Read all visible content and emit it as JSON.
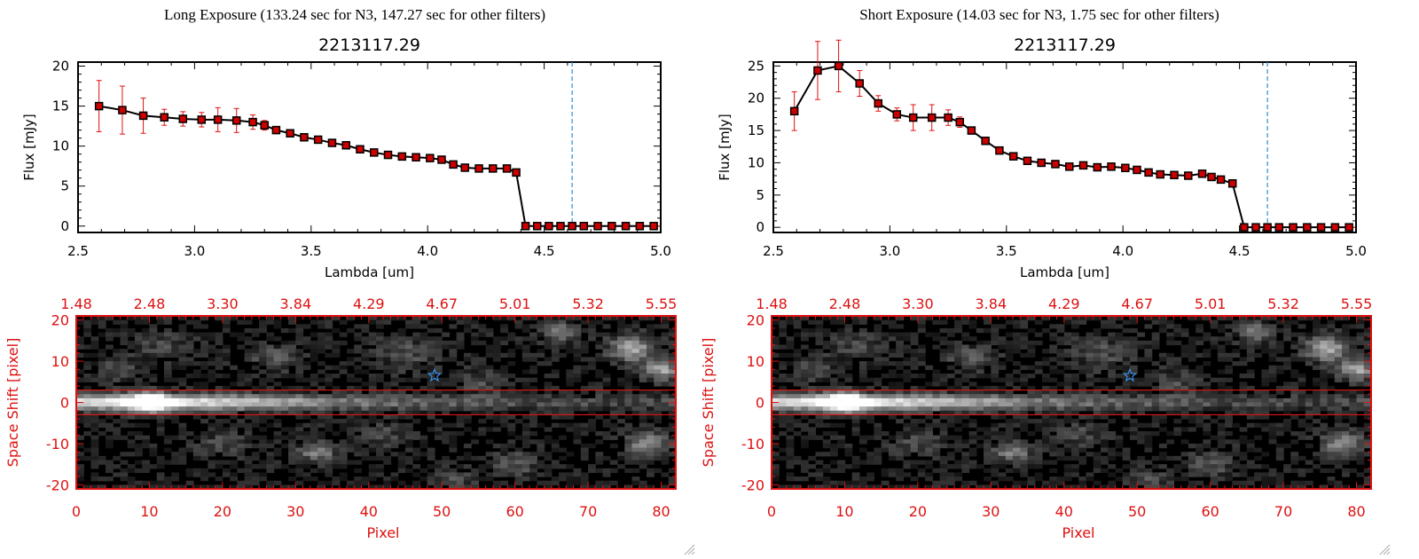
{
  "colors": {
    "axis": "#000000",
    "line": "#000000",
    "marker_fill": "#cc0000",
    "error_bar": "#e01010",
    "cutoff_line": "#2a8fd6",
    "zero_dashes": "#e01010",
    "image_frame": "#dd1111",
    "image_tick_text": "#dd1111",
    "star": "#3a8ee6",
    "extraction_box": "#dd1111"
  },
  "panels": [
    {
      "header": "Long Exposure (133.24 sec for N3, 147.27 sec for other filters)",
      "spectrum": {
        "title": "2213117.29",
        "xlabel": "Lambda [um]",
        "ylabel": "Flux [mJy]",
        "xlim": [
          2.5,
          5.0
        ],
        "ylim": [
          -0.8,
          20.5
        ],
        "xticks": [
          {
            "v": 2.5,
            "label": "2.5"
          },
          {
            "v": 3.0,
            "label": "3.0"
          },
          {
            "v": 3.5,
            "label": "3.5"
          },
          {
            "v": 4.0,
            "label": "4.0"
          },
          {
            "v": 4.5,
            "label": "4.5"
          },
          {
            "v": 5.0,
            "label": "5.0"
          }
        ],
        "yticks": [
          {
            "v": 0,
            "label": "0"
          },
          {
            "v": 5,
            "label": "5"
          },
          {
            "v": 10,
            "label": "10"
          },
          {
            "v": 15,
            "label": "15"
          },
          {
            "v": 20,
            "label": "20"
          }
        ],
        "cutoff_x": 4.62,
        "x": [
          2.59,
          2.69,
          2.78,
          2.87,
          2.95,
          3.03,
          3.1,
          3.18,
          3.25,
          3.3,
          3.35,
          3.41,
          3.47,
          3.53,
          3.59,
          3.65,
          3.71,
          3.77,
          3.83,
          3.89,
          3.95,
          4.01,
          4.06,
          4.11,
          4.16,
          4.22,
          4.28,
          4.34,
          4.38,
          4.42,
          4.47,
          4.52,
          4.57,
          4.62,
          4.67,
          4.73,
          4.79,
          4.85,
          4.91,
          4.97
        ],
        "y": [
          15.0,
          14.5,
          13.8,
          13.6,
          13.4,
          13.3,
          13.3,
          13.2,
          13.0,
          12.6,
          12.0,
          11.6,
          11.1,
          10.8,
          10.4,
          10.1,
          9.6,
          9.2,
          8.9,
          8.7,
          8.6,
          8.5,
          8.3,
          7.7,
          7.3,
          7.2,
          7.2,
          7.2,
          6.7,
          0.0,
          0.0,
          0.0,
          0.0,
          0.0,
          0.0,
          0.0,
          0.0,
          0.0,
          0.0,
          0.0
        ],
        "err": [
          3.2,
          3.0,
          2.2,
          1.0,
          0.9,
          0.9,
          1.5,
          1.5,
          0.9,
          0.6,
          0.4,
          0.3,
          0.3,
          0.3,
          0.3,
          0.2,
          0.2,
          0.2,
          0.2,
          0.2,
          0.2,
          0.2,
          0.2,
          0.2,
          0.2,
          0.2,
          0.2,
          0.2,
          0.3,
          0,
          0,
          0,
          0,
          0,
          0,
          0,
          0,
          0,
          0,
          0
        ]
      },
      "image": {
        "xlabel": "Pixel",
        "ylabel": "Space Shift [pixel]",
        "xlim": [
          0,
          82
        ],
        "ylim": [
          -21,
          21
        ],
        "xticks": [
          {
            "v": 0,
            "label": "0"
          },
          {
            "v": 10,
            "label": "10"
          },
          {
            "v": 20,
            "label": "20"
          },
          {
            "v": 30,
            "label": "30"
          },
          {
            "v": 40,
            "label": "40"
          },
          {
            "v": 50,
            "label": "50"
          },
          {
            "v": 60,
            "label": "60"
          },
          {
            "v": 70,
            "label": "70"
          },
          {
            "v": 80,
            "label": "80"
          }
        ],
        "yticks": [
          {
            "v": 20,
            "label": "20"
          },
          {
            "v": 10,
            "label": "10"
          },
          {
            "v": 0,
            "label": "0"
          },
          {
            "v": -10,
            "label": "-10"
          },
          {
            "v": -20,
            "label": "-20"
          }
        ],
        "top_ticks": [
          {
            "v": 0,
            "label": "1.48"
          },
          {
            "v": 10,
            "label": "2.48"
          },
          {
            "v": 20,
            "label": "3.30"
          },
          {
            "v": 30,
            "label": "3.84"
          },
          {
            "v": 40,
            "label": "4.29"
          },
          {
            "v": 50,
            "label": "4.67"
          },
          {
            "v": 60,
            "label": "5.01"
          },
          {
            "v": 70,
            "label": "5.32"
          },
          {
            "v": 80,
            "label": "5.55"
          }
        ],
        "extraction_band": [
          -3,
          3
        ],
        "star": {
          "x": 49,
          "y": 6.5
        },
        "source": {
          "x": 10,
          "y": 0
        }
      }
    },
    {
      "header": "Short Exposure (14.03 sec for N3, 1.75 sec for other filters)",
      "spectrum": {
        "title": "2213117.29",
        "xlabel": "Lambda [um]",
        "ylabel": "Flux [mJy]",
        "xlim": [
          2.5,
          5.0
        ],
        "ylim": [
          -0.8,
          25.6
        ],
        "xticks": [
          {
            "v": 2.5,
            "label": "2.5"
          },
          {
            "v": 3.0,
            "label": "3.0"
          },
          {
            "v": 3.5,
            "label": "3.5"
          },
          {
            "v": 4.0,
            "label": "4.0"
          },
          {
            "v": 4.5,
            "label": "4.5"
          },
          {
            "v": 5.0,
            "label": "5.0"
          }
        ],
        "yticks": [
          {
            "v": 0,
            "label": "0"
          },
          {
            "v": 5,
            "label": "5"
          },
          {
            "v": 10,
            "label": "10"
          },
          {
            "v": 15,
            "label": "15"
          },
          {
            "v": 20,
            "label": "20"
          },
          {
            "v": 25,
            "label": "25"
          }
        ],
        "cutoff_x": 4.62,
        "x": [
          2.59,
          2.69,
          2.78,
          2.87,
          2.95,
          3.03,
          3.1,
          3.18,
          3.25,
          3.3,
          3.35,
          3.41,
          3.47,
          3.53,
          3.59,
          3.65,
          3.71,
          3.77,
          3.83,
          3.89,
          3.95,
          4.01,
          4.06,
          4.11,
          4.16,
          4.22,
          4.28,
          4.34,
          4.38,
          4.42,
          4.47,
          4.52,
          4.57,
          4.62,
          4.67,
          4.73,
          4.79,
          4.85,
          4.91,
          4.97
        ],
        "y": [
          18.0,
          24.3,
          25.0,
          22.3,
          19.2,
          17.5,
          17.0,
          17.0,
          17.0,
          16.3,
          15.0,
          13.4,
          11.9,
          11.0,
          10.3,
          10.0,
          9.8,
          9.4,
          9.6,
          9.3,
          9.4,
          9.2,
          8.9,
          8.5,
          8.2,
          8.1,
          8.0,
          8.3,
          7.8,
          7.4,
          6.8,
          0.0,
          0.0,
          0.0,
          0.0,
          0.0,
          0.0,
          0.0,
          0.0,
          0.0
        ],
        "err": [
          3.0,
          4.5,
          4.0,
          2.0,
          1.2,
          1.0,
          2.0,
          2.0,
          1.2,
          0.8,
          0.5,
          0.4,
          0.3,
          0.3,
          0.3,
          0.3,
          0.3,
          0.3,
          0.3,
          0.3,
          0.3,
          0.3,
          0.3,
          0.3,
          0.3,
          0.3,
          0.3,
          0.3,
          0.3,
          0.3,
          0.3,
          0,
          0,
          0,
          0,
          0,
          0,
          0,
          0,
          0
        ]
      },
      "image": {
        "xlabel": "Pixel",
        "ylabel": "Space Shift [pixel]",
        "xlim": [
          0,
          82
        ],
        "ylim": [
          -21,
          21
        ],
        "xticks": [
          {
            "v": 0,
            "label": "0"
          },
          {
            "v": 10,
            "label": "10"
          },
          {
            "v": 20,
            "label": "20"
          },
          {
            "v": 30,
            "label": "30"
          },
          {
            "v": 40,
            "label": "40"
          },
          {
            "v": 50,
            "label": "50"
          },
          {
            "v": 60,
            "label": "60"
          },
          {
            "v": 70,
            "label": "70"
          },
          {
            "v": 80,
            "label": "80"
          }
        ],
        "yticks": [
          {
            "v": 20,
            "label": "20"
          },
          {
            "v": 10,
            "label": "10"
          },
          {
            "v": 0,
            "label": "0"
          },
          {
            "v": -10,
            "label": "-10"
          },
          {
            "v": -20,
            "label": "-20"
          }
        ],
        "top_ticks": [
          {
            "v": 0,
            "label": "1.48"
          },
          {
            "v": 10,
            "label": "2.48"
          },
          {
            "v": 20,
            "label": "3.30"
          },
          {
            "v": 30,
            "label": "3.84"
          },
          {
            "v": 40,
            "label": "4.29"
          },
          {
            "v": 50,
            "label": "4.67"
          },
          {
            "v": 60,
            "label": "5.01"
          },
          {
            "v": 70,
            "label": "5.32"
          },
          {
            "v": 80,
            "label": "5.55"
          }
        ],
        "extraction_band": [
          -3,
          3
        ],
        "star": {
          "x": 49,
          "y": 6.5
        },
        "source": {
          "x": 10,
          "y": 0
        }
      }
    }
  ],
  "chart_data": [
    {
      "type": "line",
      "title": "2213117.29",
      "xlabel": "Lambda [um]",
      "ylabel": "Flux [mJy]",
      "xlim": [
        2.5,
        5.0
      ],
      "ylim": [
        0,
        20
      ],
      "x": [
        2.59,
        2.69,
        2.78,
        2.87,
        2.95,
        3.03,
        3.1,
        3.18,
        3.25,
        3.3,
        3.35,
        3.41,
        3.47,
        3.53,
        3.59,
        3.65,
        3.71,
        3.77,
        3.83,
        3.89,
        3.95,
        4.01,
        4.06,
        4.11,
        4.16,
        4.22,
        4.28,
        4.34,
        4.38,
        4.42,
        4.47,
        4.52,
        4.57,
        4.62,
        4.67,
        4.73,
        4.79,
        4.85,
        4.91,
        4.97
      ],
      "series": [
        {
          "values": [
            15.0,
            14.5,
            13.8,
            13.6,
            13.4,
            13.3,
            13.3,
            13.2,
            13.0,
            12.6,
            12.0,
            11.6,
            11.1,
            10.8,
            10.4,
            10.1,
            9.6,
            9.2,
            8.9,
            8.7,
            8.6,
            8.5,
            8.3,
            7.7,
            7.3,
            7.2,
            7.2,
            7.2,
            6.7,
            0.0,
            0.0,
            0.0,
            0.0,
            0.0,
            0.0,
            0.0,
            0.0,
            0.0,
            0.0,
            0.0
          ]
        }
      ],
      "annotations": [
        "Long Exposure (133.24 sec for N3, 147.27 sec for other filters)"
      ]
    },
    {
      "type": "line",
      "title": "2213117.29",
      "xlabel": "Lambda [um]",
      "ylabel": "Flux [mJy]",
      "xlim": [
        2.5,
        5.0
      ],
      "ylim": [
        0,
        25
      ],
      "x": [
        2.59,
        2.69,
        2.78,
        2.87,
        2.95,
        3.03,
        3.1,
        3.18,
        3.25,
        3.3,
        3.35,
        3.41,
        3.47,
        3.53,
        3.59,
        3.65,
        3.71,
        3.77,
        3.83,
        3.89,
        3.95,
        4.01,
        4.06,
        4.11,
        4.16,
        4.22,
        4.28,
        4.34,
        4.38,
        4.42,
        4.47,
        4.52,
        4.57,
        4.62,
        4.67,
        4.73,
        4.79,
        4.85,
        4.91,
        4.97
      ],
      "series": [
        {
          "values": [
            18.0,
            24.3,
            25.0,
            22.3,
            19.2,
            17.5,
            17.0,
            17.0,
            17.0,
            16.3,
            15.0,
            13.4,
            11.9,
            11.0,
            10.3,
            10.0,
            9.8,
            9.4,
            9.6,
            9.3,
            9.4,
            9.2,
            8.9,
            8.5,
            8.2,
            8.1,
            8.0,
            8.3,
            7.8,
            7.4,
            6.8,
            0.0,
            0.0,
            0.0,
            0.0,
            0.0,
            0.0,
            0.0,
            0.0,
            0.0
          ]
        }
      ],
      "annotations": [
        "Short Exposure (14.03 sec for N3, 1.75 sec for other filters)"
      ]
    },
    {
      "type": "heatmap",
      "xlabel": "Pixel",
      "ylabel": "Space Shift [pixel]",
      "xlim": [
        0,
        82
      ],
      "ylim": [
        -21,
        21
      ],
      "top_axis_labels": [
        "1.48",
        "2.48",
        "3.30",
        "3.84",
        "4.29",
        "4.67",
        "5.01",
        "5.32",
        "5.55"
      ]
    },
    {
      "type": "heatmap",
      "xlabel": "Pixel",
      "ylabel": "Space Shift [pixel]",
      "xlim": [
        0,
        82
      ],
      "ylim": [
        -21,
        21
      ],
      "top_axis_labels": [
        "1.48",
        "2.48",
        "3.30",
        "3.84",
        "4.29",
        "4.67",
        "5.01",
        "5.32",
        "5.55"
      ]
    }
  ]
}
